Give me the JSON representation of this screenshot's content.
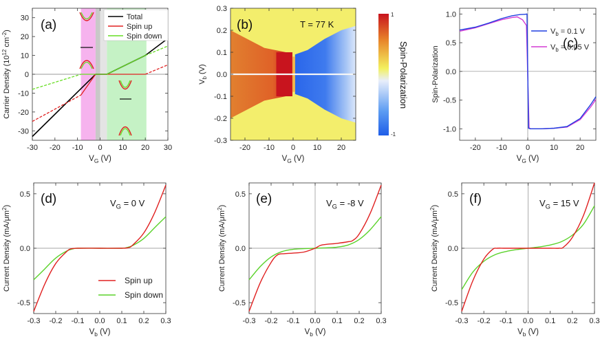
{
  "figure": {
    "panel_labels": [
      "(a)",
      "(b)",
      "(c)",
      "(d)",
      "(e)",
      "(f)"
    ]
  },
  "chart_data": [
    {
      "type": "line",
      "panel": "(a)",
      "xlabel": "V_G (V)",
      "ylabel": "Carrier Density (10^12 cm^-2)",
      "xlim": [
        -30,
        30
      ],
      "ylim": [
        -35,
        35
      ],
      "xticks": [
        -30,
        -20,
        -10,
        0,
        10,
        20,
        30
      ],
      "yticks": [
        -30,
        -20,
        -10,
        0,
        10,
        20,
        30
      ],
      "legend": [
        "Total",
        "Spin up",
        "Spin down"
      ],
      "colors": {
        "Total": "#000000",
        "Spin up": "#e02020",
        "Spin down": "#66dd22"
      },
      "bands": [
        {
          "x": [
            -8.5,
            -2
          ],
          "color": "#f6b3ee"
        },
        {
          "x": [
            -2,
            0
          ],
          "color": "#c8c8c8"
        },
        {
          "x": [
            0,
            3
          ],
          "color": "#e4e4e4"
        },
        {
          "x": [
            3,
            20.5
          ],
          "color": "#c5f2c5"
        }
      ],
      "series": [
        {
          "name": "Total",
          "x": [
            -30,
            -2,
            3,
            20,
            30
          ],
          "y": [
            -33,
            0,
            0,
            10,
            19
          ],
          "style": "solid"
        },
        {
          "name": "Spin up",
          "x": [
            -30,
            -8.5
          ],
          "y": [
            -25,
            -11
          ],
          "style": "dashed"
        },
        {
          "name": "Spin up",
          "x": [
            -8.5,
            -2,
            3,
            20
          ],
          "y": [
            -11,
            0,
            0,
            0
          ],
          "style": "solid"
        },
        {
          "name": "Spin up",
          "x": [
            20,
            30
          ],
          "y": [
            0,
            5
          ],
          "style": "dashed"
        },
        {
          "name": "Spin down",
          "x": [
            -30,
            -8.5
          ],
          "y": [
            -8,
            0
          ],
          "style": "dashed"
        },
        {
          "name": "Spin down",
          "x": [
            -8.5,
            -2,
            3,
            20
          ],
          "y": [
            0,
            0,
            0,
            10
          ],
          "style": "solid"
        },
        {
          "name": "Spin down",
          "x": [
            20,
            30
          ],
          "y": [
            10,
            15
          ],
          "style": "dashed"
        }
      ]
    },
    {
      "type": "heatmap",
      "panel": "(b)",
      "annotation": "T = 77 K",
      "xlabel": "V_G (V)",
      "ylabel": "V_b (V)",
      "xlim": [
        -26,
        26
      ],
      "ylim": [
        -0.3,
        0.3
      ],
      "xticks": [
        -20,
        -10,
        0,
        10,
        20
      ],
      "yticks": [
        -0.3,
        -0.2,
        -0.1,
        0.0,
        0.1,
        0.2,
        0.3
      ],
      "ytick_labels": [
        "-0.3",
        "-0.2",
        "-0.1",
        "0.0",
        "0.1",
        "0.2",
        "0.3"
      ],
      "colorbar": {
        "label": "Spin-Polarization",
        "min": -1,
        "max": 1,
        "tick_labels": [
          "1",
          "-1"
        ]
      }
    },
    {
      "type": "line",
      "panel": "(c)",
      "xlabel": "V_G (V)",
      "ylabel": "Spin-Polarization",
      "xlim": [
        -26,
        26
      ],
      "ylim": [
        -1.2,
        1.1
      ],
      "xticks": [
        -20,
        -10,
        0,
        10,
        20
      ],
      "yticks": [
        -1.0,
        -0.5,
        0.0,
        0.5,
        1.0
      ],
      "ytick_labels": [
        "-1.0",
        "-0.5",
        "0.0",
        "0.5",
        "1.0"
      ],
      "legend": [
        "V_b = 0.1 V",
        "V_b = 0.05 V"
      ],
      "series": [
        {
          "name": "V_b = 0.1 V",
          "color": "#1f3fe0",
          "x": [
            -26,
            -20,
            -15,
            -10,
            -6,
            -3,
            -1,
            -0.3,
            0.3,
            1,
            5,
            10,
            15,
            20,
            24,
            26
          ],
          "y": [
            0.72,
            0.77,
            0.84,
            0.92,
            0.97,
            0.99,
            0.995,
            1.0,
            -0.99,
            -1.0,
            -1.0,
            -0.99,
            -0.96,
            -0.82,
            -0.58,
            -0.44
          ]
        },
        {
          "name": "V_b = 0.05 V",
          "color": "#d43ad4",
          "x": [
            -26,
            -20,
            -15,
            -10,
            -6,
            -4,
            -2,
            -0.5,
            0.5,
            1,
            5,
            10,
            15,
            20,
            24,
            26
          ],
          "y": [
            0.7,
            0.76,
            0.83,
            0.9,
            0.94,
            0.95,
            0.9,
            0.8,
            -0.98,
            -1.0,
            -1.0,
            -0.99,
            -0.97,
            -0.84,
            -0.62,
            -0.49
          ]
        }
      ]
    },
    {
      "type": "line",
      "panel": "(d)",
      "annotation": "V_G = 0 V",
      "xlabel": "V_b (V)",
      "ylabel": "Current Density (mA/μm^2)",
      "xlim": [
        -0.3,
        0.3
      ],
      "ylim": [
        -0.6,
        0.6
      ],
      "xticks": [
        -0.3,
        -0.2,
        -0.1,
        0.0,
        0.1,
        0.2,
        0.3
      ],
      "xtick_labels": [
        "-0.3",
        "-0.2",
        "-0.1",
        "0.0",
        "0.1",
        "0.2",
        "0.3"
      ],
      "yticks": [
        -0.5,
        0.0,
        0.5
      ],
      "ytick_labels": [
        "-0.5",
        "0.0",
        "0.5"
      ],
      "legend": [
        "Spin up",
        "Spin down"
      ],
      "series": [
        {
          "name": "Spin up",
          "color": "#e02020",
          "x": [
            -0.3,
            -0.25,
            -0.2,
            -0.15,
            -0.13,
            -0.1,
            0.0,
            0.1,
            0.13,
            0.15,
            0.2,
            0.25,
            0.3
          ],
          "y": [
            -0.58,
            -0.33,
            -0.14,
            -0.03,
            -0.005,
            0.0,
            0.0,
            0.0,
            0.005,
            0.03,
            0.14,
            0.33,
            0.58
          ]
        },
        {
          "name": "Spin down",
          "color": "#5ad22a",
          "x": [
            -0.3,
            -0.25,
            -0.2,
            -0.15,
            -0.12,
            -0.1,
            0.0,
            0.1,
            0.12,
            0.15,
            0.2,
            0.25,
            0.3
          ],
          "y": [
            -0.29,
            -0.19,
            -0.09,
            -0.025,
            -0.005,
            0.0,
            0.0,
            0.0,
            0.005,
            0.025,
            0.09,
            0.19,
            0.29
          ]
        }
      ]
    },
    {
      "type": "line",
      "panel": "(e)",
      "annotation": "V_G = -8 V",
      "xlabel": "V_b (V)",
      "ylabel": "Current Density (mA/μm^2)",
      "xlim": [
        -0.3,
        0.3
      ],
      "ylim": [
        -0.6,
        0.6
      ],
      "xticks": [
        -0.3,
        -0.2,
        -0.1,
        0.0,
        0.1,
        0.2,
        0.3
      ],
      "xtick_labels": [
        "-0.3",
        "-0.2",
        "-0.1",
        "0.0",
        "0.1",
        "0.2",
        "0.3"
      ],
      "yticks": [
        -0.5,
        0.0,
        0.5
      ],
      "ytick_labels": [
        "-0.5",
        "0.0",
        "0.5"
      ],
      "series": [
        {
          "name": "Spin up",
          "color": "#e02020",
          "x": [
            -0.3,
            -0.25,
            -0.2,
            -0.17,
            -0.14,
            -0.1,
            -0.05,
            0.0,
            0.03,
            0.1,
            0.15,
            0.17,
            0.2,
            0.25,
            0.3
          ],
          "y": [
            -0.58,
            -0.32,
            -0.13,
            -0.06,
            -0.05,
            -0.045,
            -0.035,
            0.0,
            0.03,
            0.045,
            0.06,
            0.07,
            0.13,
            0.32,
            0.58
          ]
        },
        {
          "name": "Spin down",
          "color": "#5ad22a",
          "x": [
            -0.3,
            -0.25,
            -0.2,
            -0.15,
            -0.1,
            -0.05,
            0.0,
            0.05,
            0.1,
            0.15,
            0.2,
            0.25,
            0.3
          ],
          "y": [
            -0.29,
            -0.17,
            -0.08,
            -0.03,
            -0.01,
            -0.004,
            0.0,
            0.004,
            0.01,
            0.03,
            0.08,
            0.17,
            0.29
          ]
        }
      ]
    },
    {
      "type": "line",
      "panel": "(f)",
      "annotation": "V_G = 15 V",
      "xlabel": "V_b (V)",
      "ylabel": "Current Density (mA/μm^2)",
      "xlim": [
        -0.3,
        0.3
      ],
      "ylim": [
        -0.6,
        0.6
      ],
      "xticks": [
        -0.3,
        -0.2,
        -0.1,
        0.0,
        0.1,
        0.2,
        0.3
      ],
      "xtick_labels": [
        "-0.3",
        "-0.2",
        "-0.1",
        "0.0",
        "0.1",
        "0.2",
        "0.3"
      ],
      "yticks": [
        -0.5,
        0.0,
        0.5
      ],
      "ytick_labels": [
        "-0.5",
        "0.0",
        "0.5"
      ],
      "series": [
        {
          "name": "Spin up",
          "color": "#e02020",
          "x": [
            -0.3,
            -0.25,
            -0.2,
            -0.16,
            -0.14,
            -0.1,
            0.0,
            0.1,
            0.14,
            0.16,
            0.2,
            0.25,
            0.3
          ],
          "y": [
            -0.58,
            -0.3,
            -0.1,
            -0.01,
            0.0,
            0.0,
            0.0,
            0.0,
            0.0,
            0.01,
            0.1,
            0.3,
            0.6
          ]
        },
        {
          "name": "Spin down",
          "color": "#5ad22a",
          "x": [
            -0.3,
            -0.25,
            -0.2,
            -0.15,
            -0.1,
            -0.05,
            0.0,
            0.05,
            0.1,
            0.15,
            0.2,
            0.25,
            0.3
          ],
          "y": [
            -0.38,
            -0.22,
            -0.12,
            -0.06,
            -0.03,
            -0.012,
            0.0,
            0.012,
            0.03,
            0.06,
            0.12,
            0.22,
            0.39
          ]
        }
      ]
    }
  ]
}
